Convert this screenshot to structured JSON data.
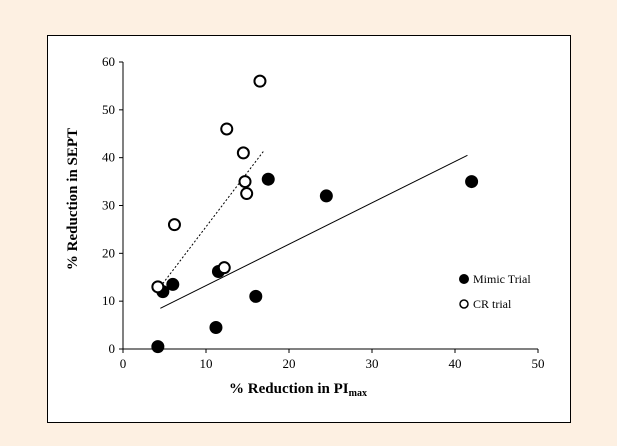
{
  "chart_data": {
    "type": "scatter",
    "xlabel": "% Reduction in PI",
    "xlabel_sub": "max",
    "ylabel": "% Reduction in SEPT",
    "xlim": [
      0,
      50
    ],
    "ylim": [
      0,
      60
    ],
    "x_ticks": [
      "0",
      "10",
      "20",
      "30",
      "40",
      "50"
    ],
    "y_ticks": [
      "0",
      "10",
      "20",
      "30",
      "40",
      "50",
      "60"
    ],
    "grid": false,
    "legend_position": "right",
    "series": [
      {
        "name": "Mimic Trial",
        "marker": "filled-circle",
        "points": [
          [
            4.2,
            0.5
          ],
          [
            4.8,
            12
          ],
          [
            6,
            13.5
          ],
          [
            11.2,
            4.5
          ],
          [
            11.5,
            16.2
          ],
          [
            16,
            11
          ],
          [
            17.5,
            35.5
          ],
          [
            24.5,
            32
          ],
          [
            42,
            35
          ]
        ],
        "trendline": {
          "style": "solid",
          "from": [
            4.5,
            8.5
          ],
          "to": [
            41.5,
            40.5
          ]
        }
      },
      {
        "name": "CR trial",
        "marker": "open-circle",
        "points": [
          [
            4.2,
            13
          ],
          [
            6.2,
            26
          ],
          [
            12.2,
            17
          ],
          [
            12.5,
            46
          ],
          [
            14.5,
            41
          ],
          [
            14.7,
            35
          ],
          [
            14.9,
            32.5
          ],
          [
            16.5,
            56
          ]
        ],
        "trendline": {
          "style": "dotted",
          "from": [
            4.5,
            13
          ],
          "to": [
            17,
            41.5
          ]
        }
      }
    ]
  }
}
